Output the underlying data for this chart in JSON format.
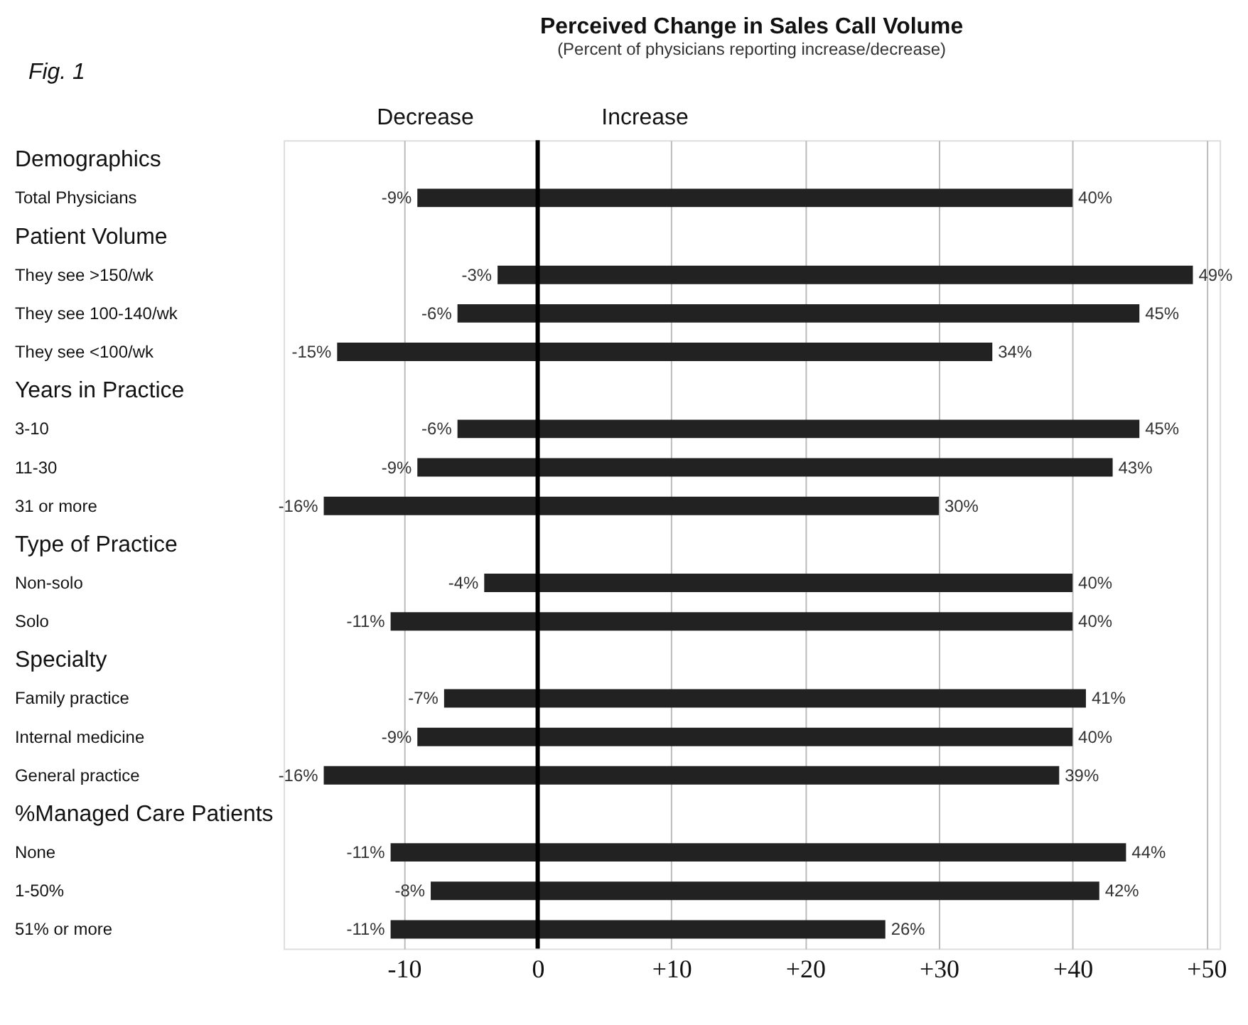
{
  "chart_data": {
    "type": "bar",
    "orientation": "horizontal",
    "stacked": true,
    "title": "Perceived Change in Sales Call Volume",
    "subtitle": "(Percent of physicians reporting increase/decrease)",
    "annotations": [
      "Fig. 1"
    ],
    "categories": [
      "Demographics",
      "Total Physicians",
      "Patient Volume",
      "They see >150/wk",
      "They see 100-140/wk",
      "They see <100/wk",
      "Years in Practice",
      "3-10",
      "11-30",
      "31 or more",
      "Type of Practice",
      "Non-solo",
      "Solo",
      "Specialty",
      "Family practice",
      "Internal medicine",
      "General practice",
      "%Managed Care Patients",
      "None",
      "1-50%",
      "51% or more"
    ],
    "series": [
      {
        "name": "Decrease",
        "color": "#222222",
        "values": [
          null,
          -9,
          null,
          -3,
          -6,
          -15,
          null,
          -6,
          -9,
          -16,
          null,
          -4,
          -11,
          null,
          -7,
          -9,
          -16,
          null,
          -11,
          -8,
          -11
        ],
        "value_labels": [
          null,
          "-9%",
          null,
          "-3%",
          "-6%",
          "-15%",
          null,
          "-6%",
          "-9%",
          "-16%",
          null,
          "-4%",
          "-11%",
          null,
          "-7%",
          "-9%",
          "-16%",
          null,
          "-11%",
          "-8%",
          "-11%"
        ]
      },
      {
        "name": "Increase",
        "color": "#222222",
        "values": [
          null,
          40,
          null,
          49,
          45,
          34,
          null,
          45,
          43,
          30,
          null,
          40,
          40,
          null,
          41,
          40,
          39,
          null,
          44,
          42,
          26
        ],
        "value_labels": [
          null,
          "40%",
          null,
          "49%",
          "45%",
          "34%",
          null,
          "45%",
          "43%",
          "30%",
          null,
          "40%",
          "40%",
          null,
          "41%",
          "40%",
          "39%",
          null,
          "44%",
          "42%",
          "26%"
        ]
      }
    ],
    "xlim": [
      -19,
      51
    ],
    "xticks": [
      -10,
      0,
      {
        "value": 10,
        "label": "+10"
      },
      {
        "value": 20,
        "label": "+20"
      },
      {
        "value": 30,
        "label": "+30"
      },
      {
        "value": 40,
        "label": "+40"
      },
      {
        "value": 50,
        "label": "+50"
      }
    ],
    "grid": "x",
    "legend": false,
    "ref_lines": [
      {
        "axis": "x",
        "value": 0
      }
    ]
  }
}
